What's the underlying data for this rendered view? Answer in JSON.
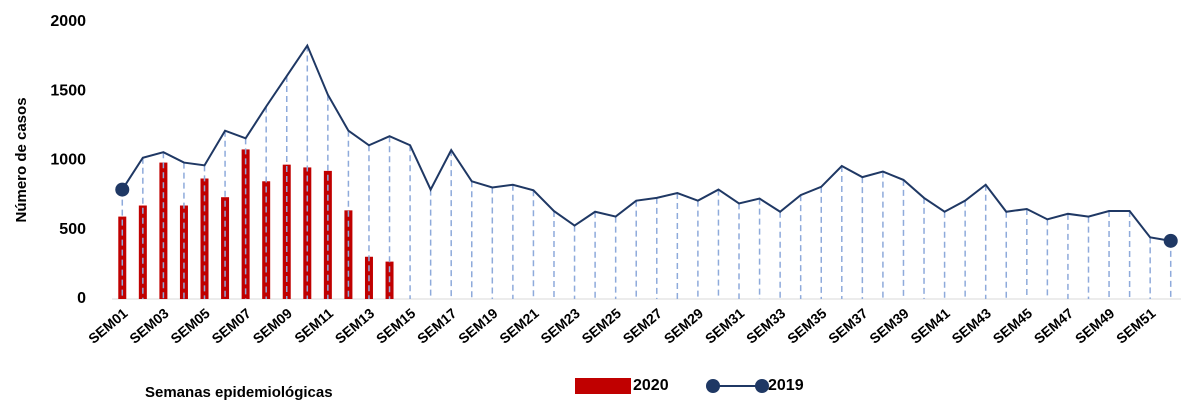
{
  "chart_data": {
    "type": "bar-line",
    "y_label": "Número de casos",
    "x_label": "Semanas epidemiológicas",
    "categories": [
      "SEM01",
      null,
      "SEM03",
      null,
      "SEM05",
      null,
      "SEM07",
      null,
      "SEM09",
      null,
      "SEM11",
      null,
      "SEM13",
      null,
      "SEM15",
      null,
      "SEM17",
      null,
      "SEM19",
      null,
      "SEM21",
      null,
      "SEM23",
      null,
      "SEM25",
      null,
      "SEM27",
      null,
      "SEM29",
      null,
      "SEM31",
      null,
      "SEM33",
      null,
      "SEM35",
      null,
      "SEM37",
      null,
      "SEM39",
      null,
      "SEM41",
      null,
      "SEM43",
      null,
      "SEM45",
      null,
      "SEM47",
      null,
      "SEM49",
      null,
      "SEM51",
      null
    ],
    "series": [
      {
        "name": "2020",
        "type": "bar",
        "color": "#c00000",
        "values": [
          595,
          675,
          985,
          675,
          870,
          735,
          1080,
          850,
          970,
          950,
          925,
          640,
          305,
          270,
          null,
          null,
          null,
          null,
          null,
          null,
          null,
          null,
          null,
          null,
          null,
          null,
          null,
          null,
          null,
          null,
          null,
          null,
          null,
          null,
          null,
          null,
          null,
          null,
          null,
          null,
          null,
          null,
          null,
          null,
          null,
          null,
          null,
          null,
          null,
          null,
          null,
          null
        ]
      },
      {
        "name": "2019",
        "type": "line",
        "color": "#1f3864",
        "drop_line_color": "#8eaadb",
        "values": [
          790,
          1020,
          1060,
          985,
          965,
          1215,
          1160,
          1390,
          1610,
          1830,
          1475,
          1215,
          1110,
          1175,
          1110,
          790,
          1075,
          850,
          805,
          825,
          785,
          635,
          530,
          630,
          595,
          710,
          730,
          765,
          710,
          790,
          690,
          725,
          630,
          750,
          810,
          960,
          880,
          920,
          860,
          730,
          630,
          710,
          825,
          630,
          650,
          575,
          615,
          595,
          635,
          635,
          445,
          420
        ]
      }
    ],
    "ylim": [
      0,
      2000
    ],
    "yticks": [
      0,
      500,
      1000,
      1500,
      2000
    ]
  }
}
